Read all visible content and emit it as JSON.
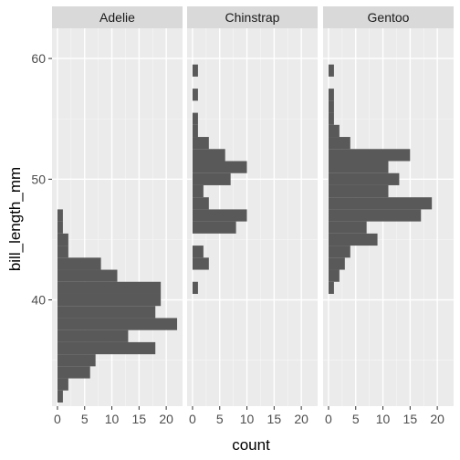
{
  "chart_data": {
    "type": "bar",
    "orientation": "horizontal-histogram",
    "title": "",
    "xlabel": "count",
    "ylabel": "bill_length_mm",
    "x_ticks": [
      0,
      5,
      10,
      15,
      20
    ],
    "x_tick_labels": [
      "0",
      "5",
      "10",
      "15",
      "20"
    ],
    "xlim": [
      -1,
      23
    ],
    "y_ticks": [
      40,
      50,
      60
    ],
    "y_tick_labels": [
      "40",
      "50",
      "60"
    ],
    "ylim": [
      31.2,
      62.5
    ],
    "bin_width": 1,
    "grid": true,
    "facet_order": [
      "Adelie",
      "Chinstrap",
      "Gentoo"
    ],
    "series": [
      {
        "name": "Adelie",
        "bins": [
          {
            "y0": 31.5,
            "y1": 32.5,
            "count": 1
          },
          {
            "y0": 32.5,
            "y1": 33.5,
            "count": 2
          },
          {
            "y0": 33.5,
            "y1": 34.5,
            "count": 6
          },
          {
            "y0": 34.5,
            "y1": 35.5,
            "count": 7
          },
          {
            "y0": 35.5,
            "y1": 36.5,
            "count": 18
          },
          {
            "y0": 36.5,
            "y1": 37.5,
            "count": 13
          },
          {
            "y0": 37.5,
            "y1": 38.5,
            "count": 22
          },
          {
            "y0": 38.5,
            "y1": 39.5,
            "count": 18
          },
          {
            "y0": 39.5,
            "y1": 40.5,
            "count": 19
          },
          {
            "y0": 40.5,
            "y1": 41.5,
            "count": 19
          },
          {
            "y0": 41.5,
            "y1": 42.5,
            "count": 11
          },
          {
            "y0": 42.5,
            "y1": 43.5,
            "count": 8
          },
          {
            "y0": 43.5,
            "y1": 44.5,
            "count": 2
          },
          {
            "y0": 44.5,
            "y1": 45.5,
            "count": 2
          },
          {
            "y0": 45.5,
            "y1": 46.5,
            "count": 1
          },
          {
            "y0": 46.5,
            "y1": 47.5,
            "count": 1
          }
        ]
      },
      {
        "name": "Chinstrap",
        "bins": [
          {
            "y0": 40.5,
            "y1": 41.5,
            "count": 1
          },
          {
            "y0": 42.5,
            "y1": 43.5,
            "count": 3
          },
          {
            "y0": 43.5,
            "y1": 44.5,
            "count": 2
          },
          {
            "y0": 45.5,
            "y1": 46.5,
            "count": 8
          },
          {
            "y0": 46.5,
            "y1": 47.5,
            "count": 10
          },
          {
            "y0": 47.5,
            "y1": 48.5,
            "count": 3
          },
          {
            "y0": 48.5,
            "y1": 49.5,
            "count": 2
          },
          {
            "y0": 49.5,
            "y1": 50.5,
            "count": 7
          },
          {
            "y0": 50.5,
            "y1": 51.5,
            "count": 10
          },
          {
            "y0": 51.5,
            "y1": 52.5,
            "count": 6
          },
          {
            "y0": 52.5,
            "y1": 53.5,
            "count": 3
          },
          {
            "y0": 53.5,
            "y1": 54.5,
            "count": 1
          },
          {
            "y0": 54.5,
            "y1": 55.5,
            "count": 1
          },
          {
            "y0": 55.5,
            "y1": 56.5,
            "count": 0
          },
          {
            "y0": 56.5,
            "y1": 57.5,
            "count": 1
          },
          {
            "y0": 58.5,
            "y1": 59.5,
            "count": 1
          }
        ]
      },
      {
        "name": "Gentoo",
        "bins": [
          {
            "y0": 40.5,
            "y1": 41.5,
            "count": 1
          },
          {
            "y0": 41.5,
            "y1": 42.5,
            "count": 2
          },
          {
            "y0": 42.5,
            "y1": 43.5,
            "count": 3
          },
          {
            "y0": 43.5,
            "y1": 44.5,
            "count": 4
          },
          {
            "y0": 44.5,
            "y1": 45.5,
            "count": 9
          },
          {
            "y0": 45.5,
            "y1": 46.5,
            "count": 7
          },
          {
            "y0": 46.5,
            "y1": 47.5,
            "count": 17
          },
          {
            "y0": 47.5,
            "y1": 48.5,
            "count": 19
          },
          {
            "y0": 48.5,
            "y1": 49.5,
            "count": 11
          },
          {
            "y0": 49.5,
            "y1": 50.5,
            "count": 13
          },
          {
            "y0": 50.5,
            "y1": 51.5,
            "count": 11
          },
          {
            "y0": 51.5,
            "y1": 52.5,
            "count": 15
          },
          {
            "y0": 52.5,
            "y1": 53.5,
            "count": 4
          },
          {
            "y0": 53.5,
            "y1": 54.5,
            "count": 2
          },
          {
            "y0": 54.5,
            "y1": 55.5,
            "count": 1
          },
          {
            "y0": 55.5,
            "y1": 56.5,
            "count": 1
          },
          {
            "y0": 56.5,
            "y1": 57.5,
            "count": 1
          },
          {
            "y0": 58.5,
            "y1": 59.5,
            "count": 1
          }
        ]
      }
    ]
  },
  "colors": {
    "panel_background": "#EBEBEB",
    "strip_background": "#D9D9D9",
    "grid_major": "#FFFFFF",
    "grid_minor": "#F5F5F5",
    "bar_fill": "#595959",
    "tick_label": "#4D4D4D",
    "axis_title": "#000000"
  }
}
